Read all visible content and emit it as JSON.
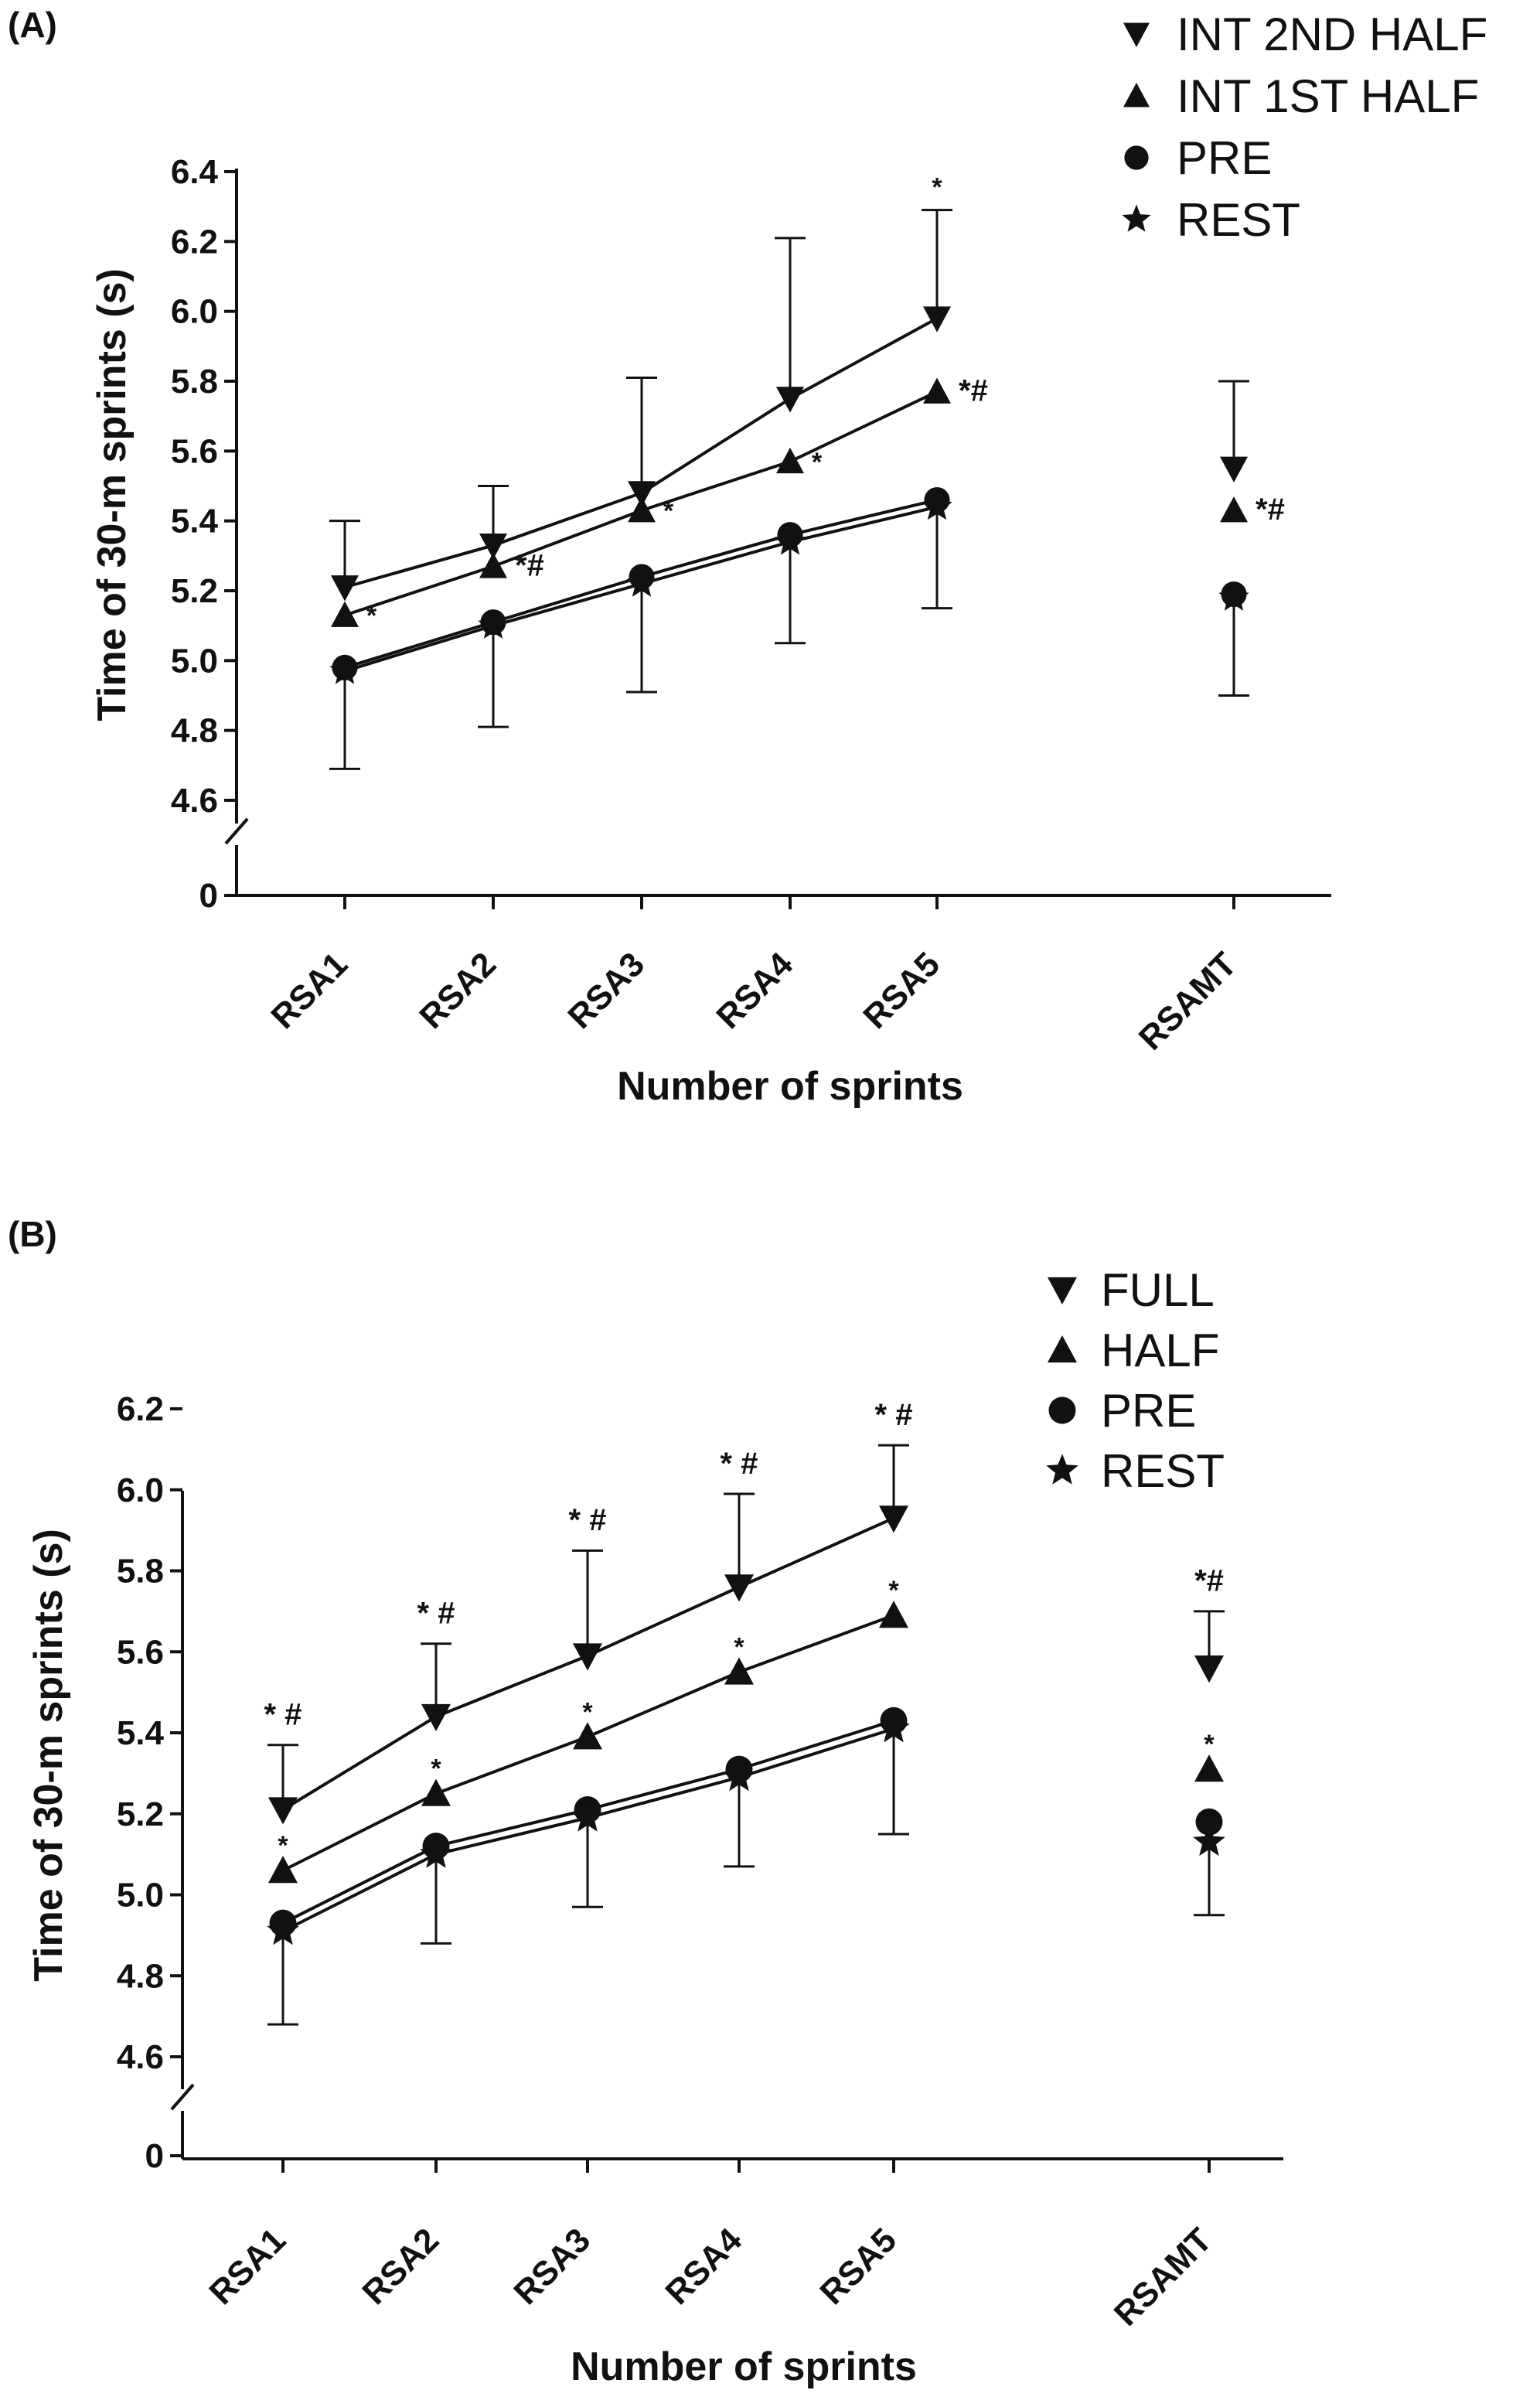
{
  "chart_data": [
    {
      "type": "line",
      "panel_label": "(A)",
      "xlabel": "Number of sprints",
      "ylabel": "Time of 30-m sprints (s)",
      "ylim": [
        4.5,
        6.4
      ],
      "yticks": [
        "4.6",
        "4.8",
        "5.0",
        "5.2",
        "5.4",
        "5.6",
        "5.8",
        "6.0",
        "6.2",
        "6.4"
      ],
      "y_break_label": "0",
      "categories": [
        "RSA1",
        "RSA2",
        "RSA3",
        "RSA4",
        "RSA5",
        "RSAMT"
      ],
      "legend_position": "top-right",
      "series": [
        {
          "name": "INT 2ND HALF",
          "marker": "triangle-down",
          "values": [
            5.21,
            5.33,
            5.48,
            5.75,
            5.98,
            5.55
          ],
          "error_up": [
            0.19,
            0.17,
            0.33,
            0.46,
            0.31,
            0.25
          ]
        },
        {
          "name": "INT 1ST HALF",
          "marker": "triangle-up",
          "values": [
            5.13,
            5.27,
            5.43,
            5.57,
            5.77,
            5.43
          ]
        },
        {
          "name": "PRE",
          "marker": "circle",
          "values": [
            4.98,
            5.11,
            5.24,
            5.36,
            5.46,
            5.19
          ]
        },
        {
          "name": "REST",
          "marker": "star",
          "values": [
            4.97,
            5.1,
            5.22,
            5.34,
            5.44,
            5.18
          ],
          "error_down": [
            0.28,
            0.29,
            0.31,
            0.29,
            0.29,
            0.28
          ]
        }
      ],
      "annotations": [
        {
          "text": "*",
          "category": "RSA5",
          "y": 6.33
        },
        {
          "text": "*#",
          "category": "RSA5",
          "y": 5.77,
          "side": "right"
        },
        {
          "text": "*",
          "category": "RSA4",
          "y": 5.57,
          "side": "right"
        },
        {
          "text": "*",
          "category": "RSA3",
          "y": 5.43,
          "side": "right"
        },
        {
          "text": "*#",
          "category": "RSA2",
          "y": 5.27,
          "side": "right"
        },
        {
          "text": "*",
          "category": "RSA1",
          "y": 5.13,
          "side": "right"
        },
        {
          "text": "*#",
          "category": "RSAMT",
          "y": 5.43,
          "side": "right"
        }
      ]
    },
    {
      "type": "line",
      "panel_label": "(B)",
      "xlabel": "Number of sprints",
      "ylabel": "Time of 30-m sprints (s)",
      "ylim": [
        4.5,
        6.2
      ],
      "yticks": [
        "4.6",
        "4.8",
        "5.0",
        "5.2",
        "5.4",
        "5.6",
        "5.8",
        "6.0",
        "6.2"
      ],
      "y_break_label": "0",
      "categories": [
        "RSA1",
        "RSA2",
        "RSA3",
        "RSA4",
        "RSA5",
        "RSAMT"
      ],
      "legend_position": "top-right",
      "series": [
        {
          "name": "FULL",
          "marker": "triangle-down",
          "values": [
            5.21,
            5.44,
            5.59,
            5.76,
            5.93,
            5.56
          ],
          "error_up": [
            0.16,
            0.18,
            0.26,
            0.23,
            0.18,
            0.14
          ]
        },
        {
          "name": "HALF",
          "marker": "triangle-up",
          "values": [
            5.06,
            5.25,
            5.39,
            5.55,
            5.69,
            5.31
          ]
        },
        {
          "name": "PRE",
          "marker": "circle",
          "values": [
            4.93,
            5.12,
            5.21,
            5.31,
            5.43,
            5.18
          ]
        },
        {
          "name": "REST",
          "marker": "star",
          "values": [
            4.91,
            5.1,
            5.19,
            5.29,
            5.41,
            5.13
          ],
          "error_down": [
            0.23,
            0.22,
            0.22,
            0.22,
            0.26,
            0.18
          ]
        }
      ],
      "annotations": [
        {
          "text": "* #",
          "category": "RSA1",
          "y": 5.42
        },
        {
          "text": "*",
          "category": "RSA1",
          "y": 5.1
        },
        {
          "text": "* #",
          "category": "RSA2",
          "y": 5.67
        },
        {
          "text": "*",
          "category": "RSA2",
          "y": 5.29
        },
        {
          "text": "* #",
          "category": "RSA3",
          "y": 5.9
        },
        {
          "text": "*",
          "category": "RSA3",
          "y": 5.43
        },
        {
          "text": "* #",
          "category": "RSA4",
          "y": 6.04
        },
        {
          "text": "*",
          "category": "RSA4",
          "y": 5.59
        },
        {
          "text": "* #",
          "category": "RSA5",
          "y": 6.16
        },
        {
          "text": "*",
          "category": "RSA5",
          "y": 5.73
        },
        {
          "text": "*#",
          "category": "RSAMT",
          "y": 5.75
        },
        {
          "text": "*",
          "category": "RSAMT",
          "y": 5.35
        }
      ]
    }
  ]
}
